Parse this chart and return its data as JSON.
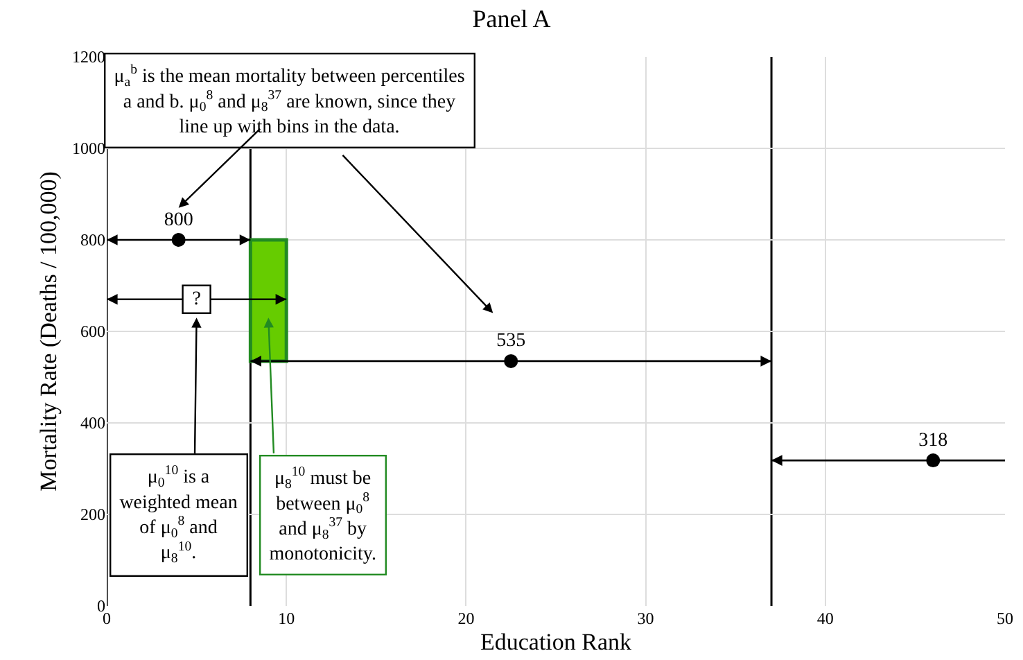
{
  "chart_data": {
    "type": "scatter",
    "title": "Panel A",
    "xlabel": "Education Rank",
    "ylabel": "Mortality Rate (Deaths / 100,000)",
    "xlim": [
      0,
      50
    ],
    "xticks": [
      0,
      10,
      20,
      30,
      40,
      50
    ],
    "ylim": [
      0,
      1200
    ],
    "yticks": [
      0,
      200,
      400,
      600,
      800,
      1000,
      1200
    ],
    "grid": true,
    "series": [
      {
        "color": "#000000",
        "marker": "circle",
        "x": [
          4,
          22.5,
          46
        ],
        "values": [
          800,
          535,
          318
        ],
        "xerrors": [
          [
            0,
            8
          ],
          [
            8,
            37
          ],
          [
            37,
            50
          ]
        ],
        "value_labels": [
          "800",
          "535",
          "318"
        ]
      },
      {
        "color": "#000000",
        "marker": "square",
        "x": [
          5
        ],
        "values": [
          670
        ],
        "xerrors": [
          [
            0,
            10
          ]
        ],
        "value_labels": [
          "?"
        ]
      },
      {
        "type": "bar",
        "color": "#66cc00",
        "x": [
          9
        ],
        "base": [
          535
        ],
        "values": [
          265
        ]
      }
    ],
    "ref_lines": [
      {
        "axis": "x",
        "value": 0,
        "color": "#000000"
      },
      {
        "axis": "x",
        "value": 8,
        "color": "#000000"
      },
      {
        "axis": "x",
        "value": 37,
        "color": "#000000"
      }
    ],
    "annotations": [
      "μ$_{a}$$^{b}$ is the mean mortality between percentiles a and b. μ$_{0}$$^{8}$ and μ$_{8}$$^{37}$ are known, since they line up with bins in the data.",
      "μ$_{0}$$^{10}$ is a weighted mean of μ$_{0}$$^{8}$ and μ$_{8}$$^{10}$.",
      "μ$_{8}$$^{10}$ must be between μ$_{0}$$^{8}$ and μ$_{8}$$^{37}$ by monotonicity."
    ]
  }
}
